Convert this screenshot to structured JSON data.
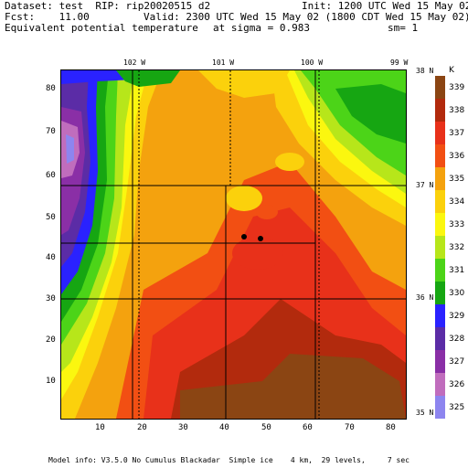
{
  "header": {
    "line1_left": "Dataset: test  RIP: rip20020515 d2",
    "line1_right": "Init: 1200 UTC Wed 15 May 02",
    "line2_left": "Fcst:    11.00",
    "line2_right": "Valid: 2300 UTC Wed 15 May 02 (1800 CDT Wed 15 May 02)",
    "line3_left": "Equivalent potential temperature",
    "line3_mid": "at sigma = 0.983",
    "line3_right": "sm= 1"
  },
  "top_ticks": [
    "102 W",
    "101 W",
    "100 W",
    "99 W"
  ],
  "right_ticks": [
    "38 N",
    "37 N",
    "36 N",
    "35 N"
  ],
  "left_ticks": [
    "80",
    "70",
    "60",
    "50",
    "40",
    "30",
    "20",
    "10"
  ],
  "bottom_ticks": [
    "10",
    "20",
    "30",
    "40",
    "50",
    "60",
    "70",
    "80"
  ],
  "colorbar": {
    "unit": "K",
    "levels": [
      {
        "label": "339",
        "color": "#8b4513"
      },
      {
        "label": "338",
        "color": "#b22a0d"
      },
      {
        "label": "337",
        "color": "#e8311a"
      },
      {
        "label": "336",
        "color": "#f24f13"
      },
      {
        "label": "335",
        "color": "#f4a20e"
      },
      {
        "label": "334",
        "color": "#fbd10c"
      },
      {
        "label": "333",
        "color": "#fbf70f"
      },
      {
        "label": "332",
        "color": "#b7e61a"
      },
      {
        "label": "331",
        "color": "#4cd418"
      },
      {
        "label": "330",
        "color": "#16a612"
      },
      {
        "label": "329",
        "color": "#2a22ff"
      },
      {
        "label": "328",
        "color": "#5b2ca6"
      },
      {
        "label": "327",
        "color": "#8a2fa6"
      },
      {
        "label": "326",
        "color": "#c06dbd"
      },
      {
        "label": "325",
        "color": "#8d85ef"
      }
    ]
  },
  "footer": "Model info: V3.5.0 No Cumulus Blackadar  Simple ice    4 km,  29 levels,     7 sec"
}
